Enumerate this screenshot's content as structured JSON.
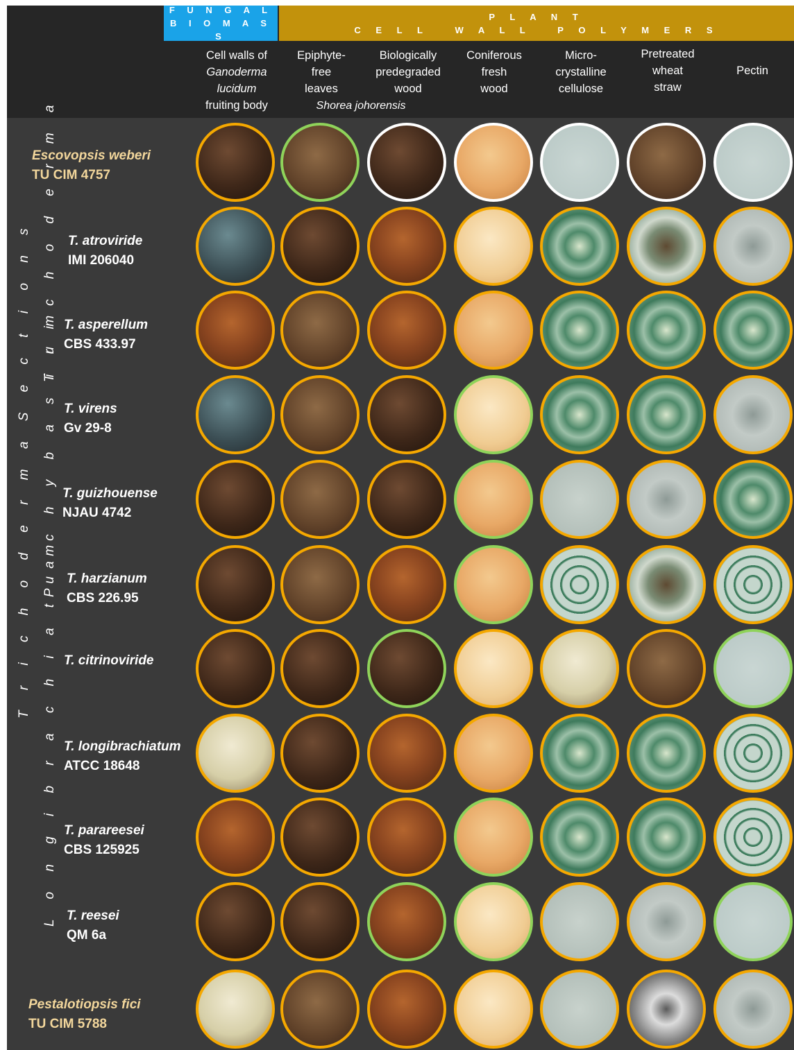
{
  "banners": {
    "fungal_line1": "F U N G A L",
    "fungal_line2": "B I O M A S S",
    "plant_line1": "P L A N T",
    "plant_line2": "C E L L   W A L L   P O L Y M E R S"
  },
  "columns": {
    "c1_l1": "Cell walls of",
    "c1_l2": "Ganoderma lucidum",
    "c1_l3": "fruiting body",
    "c2_l1": "Epiphyte-",
    "c2_l2": "free",
    "c2_l3": "leaves",
    "c3_l1": "Biologically",
    "c3_l2": "predegraded",
    "c3_l3": "wood",
    "c4_l1": "Coniferous",
    "c4_l2": "fresh",
    "c4_l3": "wood",
    "c5_l1": "Micro-",
    "c5_l2": "crystalline",
    "c5_l3": "cellulose",
    "c6_l1": "Pretreated",
    "c6_l2": "wheat",
    "c6_l3": "straw",
    "c7_l1": "Pectin",
    "shorea": "Shorea johorensis"
  },
  "rows": [
    {
      "species": "Escovopsis weberi",
      "strain": "TU CIM 4757"
    },
    {
      "species": "T. atroviride",
      "strain": "IMI 206040"
    },
    {
      "species": "T. asperellum",
      "strain": "CBS 433.97"
    },
    {
      "species": "T. virens",
      "strain": "Gv 29-8"
    },
    {
      "species": "T. guizhouense",
      "strain": "NJAU 4742"
    },
    {
      "species": "T. harzianum",
      "strain": "CBS 226.95"
    },
    {
      "species": "T. citrinoviride",
      "strain": ""
    },
    {
      "species": "T. longibrachiatum",
      "strain": "ATCC 18648"
    },
    {
      "species": "T. parareesei",
      "strain": "CBS 125925"
    },
    {
      "species": "T. reesei",
      "strain": "QM 6a"
    },
    {
      "species": "Pestalotiopsis fici",
      "strain": "TU CIM 5788"
    }
  ],
  "groups": {
    "trichoderma": "T r i c h o d e r m a",
    "pachybasium": "P a c h y b a s i u m",
    "longibrachiatum": "L o n g i b r a c h i a t u m",
    "sections": "T r i c h o d e r m a   S e c t i o n s"
  },
  "colors": {
    "fungal": "#1aa3e8",
    "plant": "#c2920c",
    "border_orange": "#f5a800",
    "border_green": "#8fd35a",
    "border_white": "#ffffff"
  }
}
